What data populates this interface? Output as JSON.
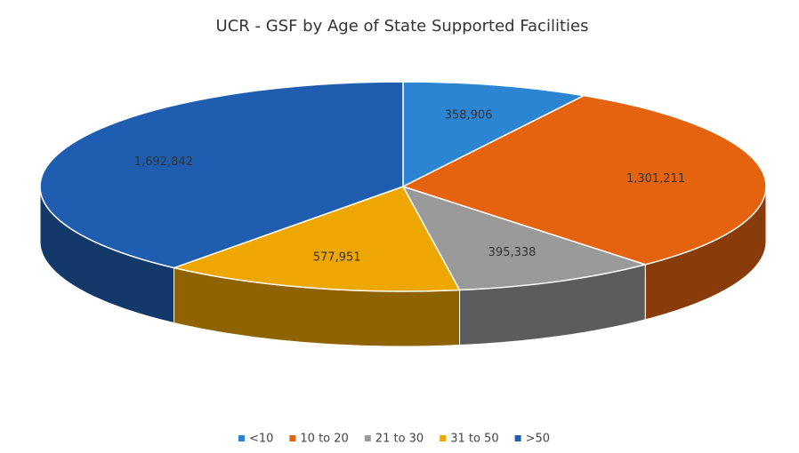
{
  "chart_data": {
    "type": "pie3d",
    "title": "UCR - GSF by Age of State Supported Facilities",
    "categories": [
      "<10",
      "10 to 20",
      "21 to 30",
      "31 to 50",
      ">50"
    ],
    "values": [
      358906,
      1301211,
      395338,
      577951,
      1692842
    ],
    "value_labels": [
      "358,906",
      "1,301,211",
      "395,338",
      "577,951",
      "1,692,842"
    ],
    "colors": [
      "#2b85d3",
      "#e5620f",
      "#9a9a9a",
      "#eea600",
      "#1f5db0"
    ],
    "legend": "bottom"
  }
}
